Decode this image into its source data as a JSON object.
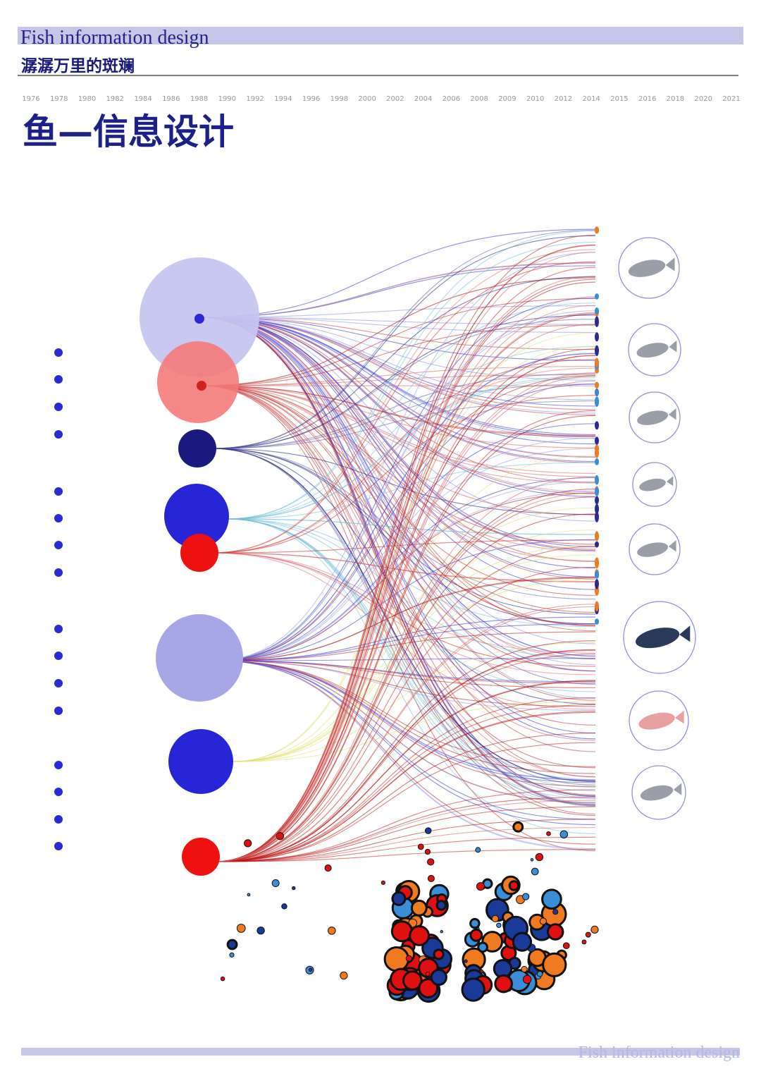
{
  "header": {
    "title": "Fish information design",
    "subtitle": "潺潺万里的斑斓"
  },
  "timeline": [
    "1976",
    "1978",
    "1980",
    "1982",
    "1984",
    "1986",
    "1988",
    "1990",
    "1992",
    "1994",
    "1996",
    "1998",
    "2000",
    "2002",
    "2004",
    "2006",
    "2008",
    "2009",
    "2010",
    "2012",
    "2014",
    "2015",
    "2016",
    "2018",
    "2020",
    "2021"
  ],
  "heading": "鱼—信息设计",
  "footer": "Fish information design"
}
